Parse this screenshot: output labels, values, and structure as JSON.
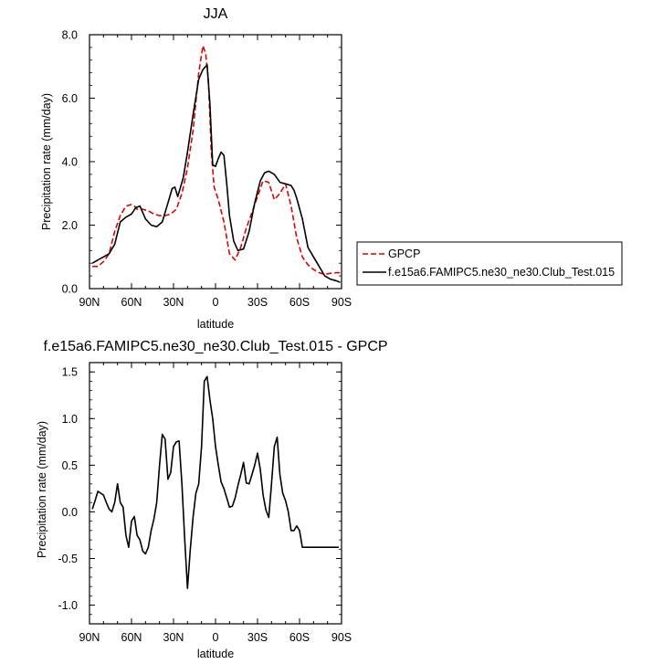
{
  "chart_data": [
    {
      "type": "line",
      "title": "JJA",
      "xlabel": "latitude",
      "ylabel": "Precipitation rate (mm/day)",
      "xlim": [
        90,
        -90
      ],
      "ylim": [
        0,
        8
      ],
      "xticks": [
        90,
        60,
        30,
        0,
        -30,
        -60,
        -90
      ],
      "xtick_labels": [
        "90N",
        "60N",
        "30N",
        "0",
        "30S",
        "60S",
        "90S"
      ],
      "yticks": [
        0,
        2,
        4,
        6,
        8
      ],
      "ytick_labels": [
        "0.0",
        "2.0",
        "4.0",
        "6.0",
        "8.0"
      ],
      "grid": false,
      "legend": "outside-right",
      "series": [
        {
          "name": "GPCP",
          "color": "#e00000",
          "dash": "dashed",
          "x": [
            88,
            84,
            80,
            76,
            72,
            68,
            64,
            60,
            58,
            56,
            52,
            48,
            44,
            40,
            36,
            32,
            28,
            24,
            20,
            16,
            12,
            9,
            7,
            5,
            3,
            1,
            -2,
            -6,
            -10,
            -14,
            -18,
            -22,
            -26,
            -30,
            -34,
            -38,
            -42,
            -46,
            -50,
            -54,
            -58,
            -62,
            -66,
            -70,
            -74,
            -78,
            -82,
            -86,
            -89
          ],
          "y": [
            0.7,
            0.7,
            0.85,
            1.1,
            1.8,
            2.3,
            2.6,
            2.65,
            2.6,
            2.5,
            2.5,
            2.45,
            2.35,
            2.3,
            2.3,
            2.35,
            2.5,
            3.0,
            3.8,
            5.0,
            6.8,
            7.65,
            7.4,
            6.5,
            4.3,
            3.2,
            2.8,
            2.1,
            1.1,
            0.9,
            1.3,
            1.9,
            2.4,
            2.9,
            3.4,
            3.35,
            2.8,
            3.0,
            3.3,
            2.6,
            1.6,
            1.0,
            0.75,
            0.6,
            0.5,
            0.45,
            0.48,
            0.5,
            0.5
          ]
        },
        {
          "name": "f.e15a6.FAMIPC5.ne30_ne30.Club_Test.015",
          "color": "#000000",
          "dash": "solid",
          "x": [
            88,
            84,
            80,
            76,
            72,
            68,
            64,
            60,
            57,
            54,
            50,
            46,
            42,
            38,
            34,
            31,
            29,
            27,
            25,
            23,
            20,
            16,
            12,
            9,
            6,
            4,
            2,
            0,
            -2,
            -4,
            -6,
            -8,
            -10,
            -13,
            -16,
            -20,
            -24,
            -28,
            -32,
            -35,
            -38,
            -42,
            -46,
            -50,
            -54,
            -56,
            -58,
            -62,
            -66,
            -70,
            -74,
            -78,
            -82,
            -86,
            -89
          ],
          "y": [
            0.8,
            0.9,
            1.0,
            1.1,
            1.4,
            2.1,
            2.25,
            2.35,
            2.55,
            2.6,
            2.2,
            2.0,
            1.95,
            2.1,
            2.7,
            3.15,
            3.2,
            2.9,
            3.2,
            3.5,
            4.3,
            5.5,
            6.6,
            6.9,
            7.05,
            5.8,
            3.9,
            3.85,
            4.1,
            4.3,
            4.2,
            3.3,
            2.3,
            1.5,
            1.2,
            1.25,
            1.8,
            2.7,
            3.4,
            3.65,
            3.7,
            3.6,
            3.35,
            3.3,
            3.25,
            3.1,
            2.85,
            2.2,
            1.3,
            1.0,
            0.7,
            0.4,
            0.3,
            0.25,
            0.2
          ]
        }
      ]
    },
    {
      "type": "line",
      "title": "f.e15a6.FAMIPC5.ne30_ne30.Club_Test.015 - GPCP",
      "xlabel": "latitude",
      "ylabel": "Precipitation rate (mm/day)",
      "xlim": [
        90,
        -90
      ],
      "ylim": [
        -1.2,
        1.6
      ],
      "xticks": [
        90,
        60,
        30,
        0,
        -30,
        -60,
        -90
      ],
      "xtick_labels": [
        "90N",
        "60N",
        "30N",
        "0",
        "30S",
        "60S",
        "90S"
      ],
      "yticks": [
        -1.0,
        -0.5,
        0.0,
        0.5,
        1.0,
        1.5
      ],
      "ytick_labels": [
        "-1.0",
        "-0.5",
        "0.0",
        "0.5",
        "1.0",
        "1.5"
      ],
      "grid": false,
      "series": [
        {
          "color": "#000000",
          "dash": "solid",
          "x": [
            88,
            86,
            84,
            82,
            80,
            78,
            76,
            74,
            72,
            70,
            68,
            66,
            64,
            62,
            60,
            58,
            56,
            54,
            52,
            50,
            48,
            46,
            44,
            42,
            40,
            38,
            36,
            34,
            32,
            30,
            28,
            26,
            24,
            22,
            20,
            18,
            16,
            14,
            12,
            10,
            8,
            6,
            4,
            2,
            0,
            -2,
            -4,
            -6,
            -8,
            -10,
            -12,
            -14,
            -16,
            -18,
            -20,
            -22,
            -24,
            -26,
            -28,
            -30,
            -32,
            -34,
            -36,
            -38,
            -40,
            -42,
            -44,
            -46,
            -48,
            -50,
            -52,
            -54,
            -56,
            -58,
            -60,
            -62,
            -64,
            -66,
            -68,
            -70,
            -72,
            -74,
            -76,
            -78,
            -80,
            -82,
            -84,
            -86,
            -88
          ],
          "y": [
            0.03,
            0.12,
            0.22,
            0.2,
            0.18,
            0.1,
            0.03,
            0.0,
            0.1,
            0.3,
            0.1,
            0.05,
            -0.25,
            -0.38,
            -0.1,
            -0.05,
            -0.25,
            -0.3,
            -0.42,
            -0.45,
            -0.38,
            -0.2,
            -0.08,
            0.1,
            0.5,
            0.83,
            0.78,
            0.35,
            0.42,
            0.7,
            0.75,
            0.76,
            0.3,
            -0.3,
            -0.82,
            -0.4,
            -0.05,
            0.2,
            0.3,
            0.7,
            1.4,
            1.45,
            1.2,
            1.0,
            0.7,
            0.5,
            0.32,
            0.25,
            0.15,
            0.05,
            0.06,
            0.15,
            0.28,
            0.4,
            0.53,
            0.31,
            0.3,
            0.4,
            0.5,
            0.63,
            0.45,
            0.18,
            0.02,
            -0.06,
            0.3,
            0.7,
            0.8,
            0.4,
            0.2,
            0.12,
            0.0,
            -0.2,
            -0.2,
            -0.15,
            -0.2,
            -0.38,
            -0.38,
            -0.38,
            -0.38,
            -0.38,
            -0.38,
            -0.38,
            -0.38,
            -0.38,
            -0.38,
            -0.38,
            -0.38,
            -0.38,
            -0.38
          ]
        }
      ]
    }
  ]
}
